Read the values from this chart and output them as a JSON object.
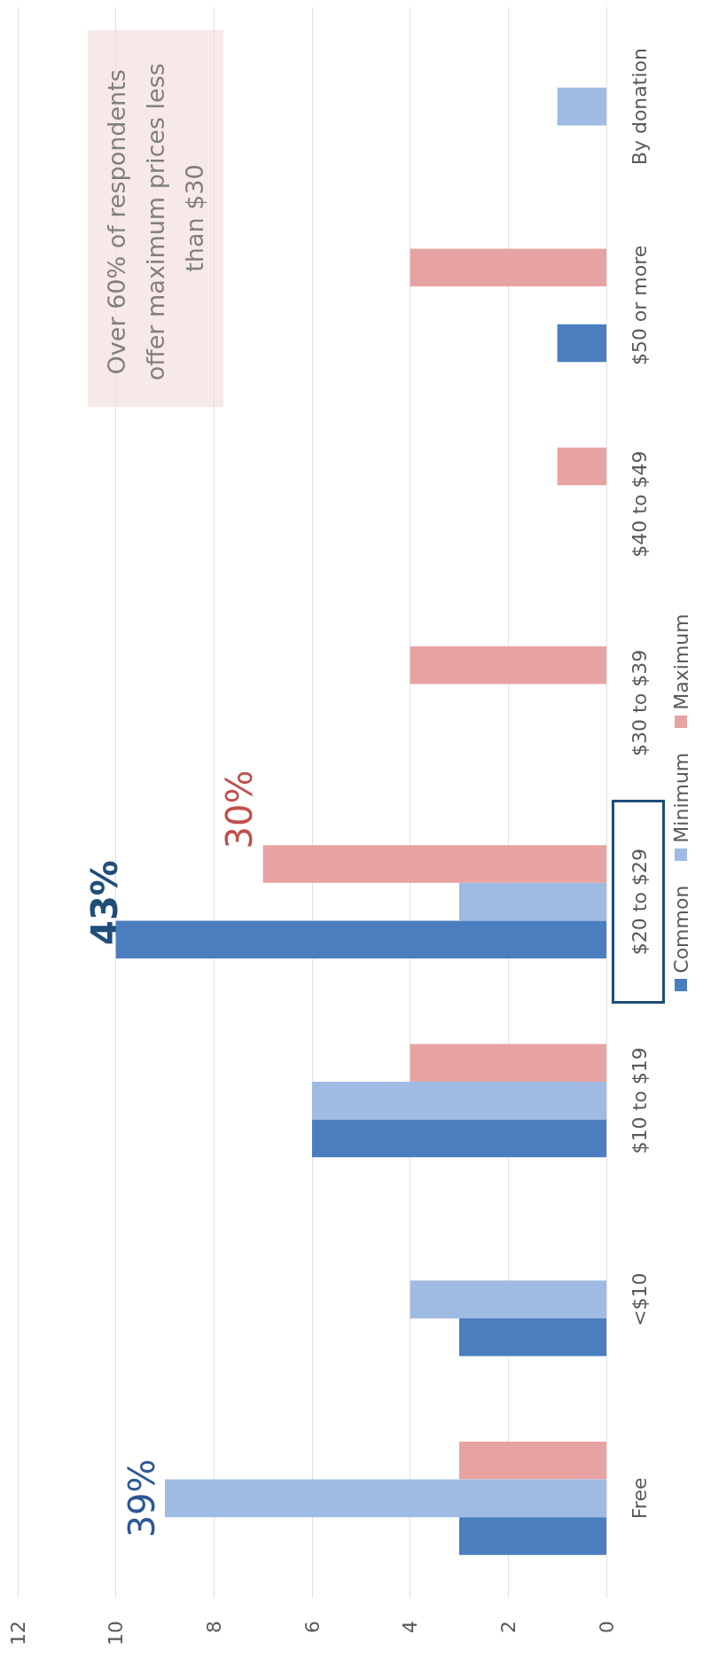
{
  "chart_data": {
    "type": "bar",
    "orientation": "horizontal",
    "categories": [
      "By donation",
      "$50 or more",
      "$40 to $49",
      "$30 to $39",
      "$20 to $29",
      "$10 to $19",
      "<$10",
      "Free"
    ],
    "series": [
      {
        "name": "Maximum",
        "color": "#e6a3a1",
        "values": [
          0,
          4,
          1,
          4,
          7,
          4,
          0,
          3
        ]
      },
      {
        "name": "Minimum",
        "color": "#9fbbe3",
        "values": [
          1,
          0,
          0,
          0,
          3,
          6,
          4,
          9
        ]
      },
      {
        "name": "Common",
        "color": "#4a7ebf",
        "values": [
          0,
          1,
          0,
          0,
          10,
          6,
          3,
          3
        ]
      }
    ],
    "xlim": [
      12,
      0
    ],
    "xticks": [
      12,
      10,
      8,
      6,
      4,
      2,
      0
    ],
    "grid": "x",
    "legend": "right",
    "annotations": [
      {
        "text": "39%",
        "x": 9,
        "y": "Free"
      },
      "43%",
      "30%",
      "Over 60% of respondents offer maximum prices less than $30"
    ]
  }
}
